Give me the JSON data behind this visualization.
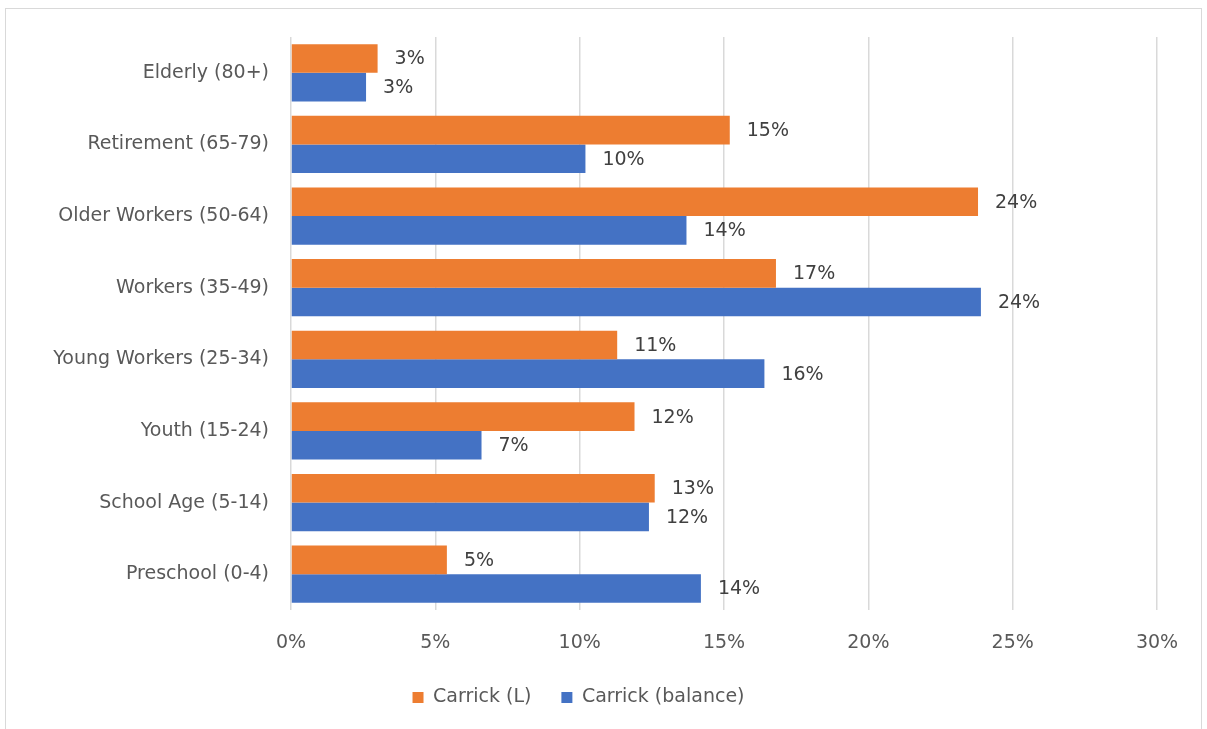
{
  "chart_data": {
    "type": "bar",
    "orientation": "horizontal",
    "categories": [
      "Elderly (80+)",
      "Retirement (65-79)",
      "Older Workers (50-64)",
      "Workers (35-49)",
      "Young Workers (25-34)",
      "Youth (15-24)",
      "School Age (5-14)",
      "Preschool (0-4)"
    ],
    "series": [
      {
        "name": "Carrick (L)",
        "color": "#ed7d31",
        "values": [
          3.0,
          15.2,
          23.8,
          16.8,
          11.3,
          11.9,
          12.6,
          5.4
        ],
        "value_labels": [
          "3%",
          "15%",
          "24%",
          "17%",
          "11%",
          "12%",
          "13%",
          "5%"
        ]
      },
      {
        "name": "Carrick (balance)",
        "color": "#4472c4",
        "values": [
          2.6,
          10.2,
          13.7,
          23.9,
          16.4,
          6.6,
          12.4,
          14.2
        ],
        "value_labels": [
          "3%",
          "10%",
          "14%",
          "24%",
          "16%",
          "7%",
          "12%",
          "14%"
        ]
      }
    ],
    "xlim": [
      0,
      30
    ],
    "xticks": [
      {
        "value": 0,
        "label": "0%"
      },
      {
        "value": 5,
        "label": "5%"
      },
      {
        "value": 10,
        "label": "10%"
      },
      {
        "value": 15,
        "label": "15%"
      },
      {
        "value": 20,
        "label": "20%"
      },
      {
        "value": 25,
        "label": "25%"
      },
      {
        "value": 30,
        "label": "30%"
      }
    ],
    "grid": "x",
    "legend": "bottom"
  }
}
